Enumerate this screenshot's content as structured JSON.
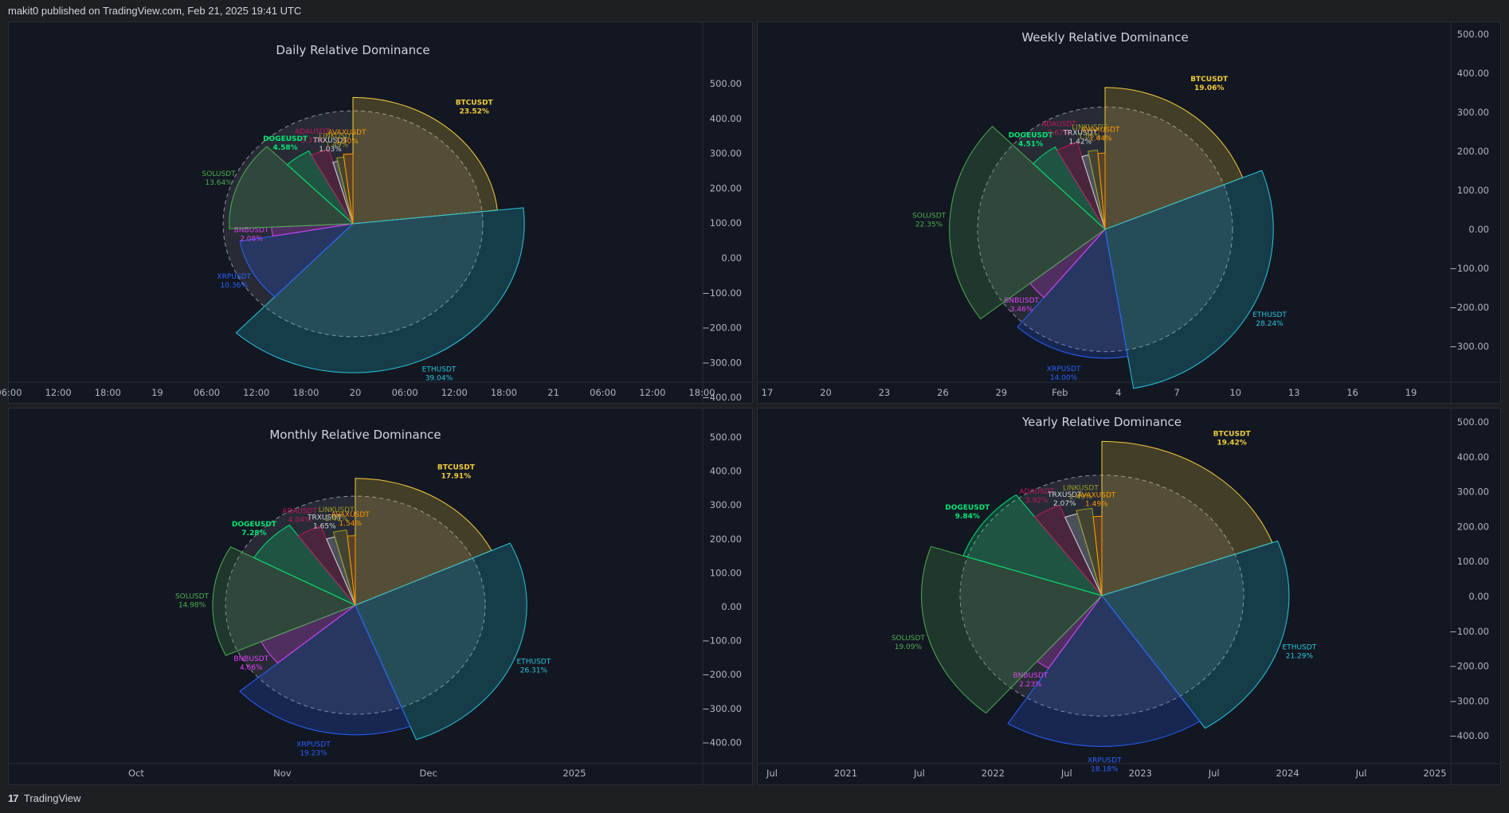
{
  "header": {
    "published": "makit0 published on TradingView.com, Feb 21, 2025 19:41 UTC"
  },
  "footer": {
    "logo_text": "TradingView",
    "logo_mark": "17"
  },
  "colors": {
    "BTCUSDT": "#f2cd3c",
    "ETHUSDT": "#26c6da",
    "XRPUSDT": "#2962ff",
    "BNBUSDT": "#e040fb",
    "SOLUSDT": "#4caf50",
    "DOGEUSDT": "#00e676",
    "TRXUSDT": "#cfd8dc",
    "ADAUSDT": "#c2185b",
    "LINKUSDT": "#9e9d24",
    "AVAXUSDT": "#ff9800"
  },
  "chart_data": [
    {
      "type": "pie",
      "title": "Daily Relative Dominance",
      "yticks": [
        "500.00",
        "400.00",
        "300.00",
        "200.00",
        "100.00",
        "0.00",
        "−100.00",
        "−200.00",
        "−300.00",
        "−400.00"
      ],
      "xticks": [
        "06:00",
        "12:00",
        "18:00",
        "19",
        "06:00",
        "12:00",
        "18:00",
        "20",
        "06:00",
        "12:00",
        "18:00",
        "21",
        "06:00",
        "12:00",
        "18:00"
      ],
      "slices": [
        {
          "name": "BTCUSDT",
          "label": "23.52%",
          "value": 23.52
        },
        {
          "name": "ETHUSDT",
          "label": "39.04%",
          "value": 39.04
        },
        {
          "name": "XRPUSDT",
          "label": "10.36%",
          "value": 10.36
        },
        {
          "name": "BNBUSDT",
          "label": "2.08%",
          "value": 2.08
        },
        {
          "name": "SOLUSDT",
          "label": "13.64%",
          "value": 13.64
        },
        {
          "name": "DOGEUSDT",
          "label": "4.58%",
          "value": 4.58
        },
        {
          "name": "TRXUSDT",
          "label": "1.03%",
          "value": 1.03
        },
        {
          "name": "ADAUSDT",
          "label": "3.37%",
          "value": 3.37
        },
        {
          "name": "LINKUSDT",
          "label": "1.49%",
          "value": 1.49
        },
        {
          "name": "AVAXUSDT",
          "label": "1.90%",
          "value": 1.9
        }
      ]
    },
    {
      "type": "pie",
      "title": "Weekly Relative Dominance",
      "yticks": [
        "500.00",
        "400.00",
        "300.00",
        "200.00",
        "100.00",
        "0.00",
        "−100.00",
        "−200.00",
        "−300.00"
      ],
      "xticks": [
        "17",
        "20",
        "23",
        "26",
        "29",
        "Feb",
        "4",
        "7",
        "10",
        "13",
        "16",
        "19"
      ],
      "slices": [
        {
          "name": "BTCUSDT",
          "label": "19.06%",
          "value": 19.06
        },
        {
          "name": "ETHUSDT",
          "label": "28.24%",
          "value": 28.24
        },
        {
          "name": "XRPUSDT",
          "label": "14.00%",
          "value": 14.0
        },
        {
          "name": "BNBUSDT",
          "label": "3.46%",
          "value": 3.46
        },
        {
          "name": "SOLUSDT",
          "label": "22.35%",
          "value": 22.35
        },
        {
          "name": "DOGEUSDT",
          "label": "4.51%",
          "value": 4.51
        },
        {
          "name": "TRXUSDT",
          "label": "1.42%",
          "value": 1.42
        },
        {
          "name": "ADAUSDT",
          "label": "3.67%",
          "value": 3.67
        },
        {
          "name": "LINKUSDT",
          "label": "1.85%",
          "value": 1.85
        },
        {
          "name": "AVAXUSDT",
          "label": "1.44%",
          "value": 1.44
        }
      ]
    },
    {
      "type": "pie",
      "title": "Monthly Relative Dominance",
      "yticks": [
        "500.00",
        "400.00",
        "300.00",
        "200.00",
        "100.00",
        "0.00",
        "−100.00",
        "−200.00",
        "−300.00",
        "−400.00"
      ],
      "xticks": [
        "Oct",
        "Nov",
        "Dec",
        "2025"
      ],
      "slices": [
        {
          "name": "BTCUSDT",
          "label": "17.91%",
          "value": 17.91
        },
        {
          "name": "ETHUSDT",
          "label": "26.31%",
          "value": 26.31
        },
        {
          "name": "XRPUSDT",
          "label": "19.23%",
          "value": 19.23
        },
        {
          "name": "BNBUSDT",
          "label": "4.66%",
          "value": 4.66
        },
        {
          "name": "SOLUSDT",
          "label": "14.98%",
          "value": 14.98
        },
        {
          "name": "DOGEUSDT",
          "label": "7.28%",
          "value": 7.28
        },
        {
          "name": "TRXUSDT",
          "label": "1.65%",
          "value": 1.65
        },
        {
          "name": "ADAUSDT",
          "label": "4.04%",
          "value": 4.04
        },
        {
          "name": "LINKUSDT",
          "label": "2.40%",
          "value": 2.4
        },
        {
          "name": "AVAXUSDT",
          "label": "1.54%",
          "value": 1.54
        }
      ]
    },
    {
      "type": "pie",
      "title": "Yearly Relative Dominance",
      "yticks": [
        "500.00",
        "400.00",
        "300.00",
        "200.00",
        "100.00",
        "0.00",
        "−100.00",
        "−200.00",
        "−300.00",
        "−400.00"
      ],
      "xticks": [
        "Jul",
        "2021",
        "Jul",
        "2022",
        "Jul",
        "2023",
        "Jul",
        "2024",
        "Jul",
        "2025"
      ],
      "slices": [
        {
          "name": "BTCUSDT",
          "label": "19.42%",
          "value": 19.42
        },
        {
          "name": "ETHUSDT",
          "label": "21.29%",
          "value": 21.29
        },
        {
          "name": "XRPUSDT",
          "label": "18.18%",
          "value": 18.18
        },
        {
          "name": "BNBUSDT",
          "label": "2.23%",
          "value": 2.23
        },
        {
          "name": "SOLUSDT",
          "label": "19.09%",
          "value": 19.09
        },
        {
          "name": "DOGEUSDT",
          "label": "9.84%",
          "value": 9.84
        },
        {
          "name": "TRXUSDT",
          "label": "2.07%",
          "value": 2.07
        },
        {
          "name": "ADAUSDT",
          "label": "3.92%",
          "value": 3.92
        },
        {
          "name": "LINKUSDT",
          "label": "2.49%",
          "value": 2.49
        },
        {
          "name": "AVAXUSDT",
          "label": "1.49%",
          "value": 1.49
        }
      ]
    }
  ]
}
